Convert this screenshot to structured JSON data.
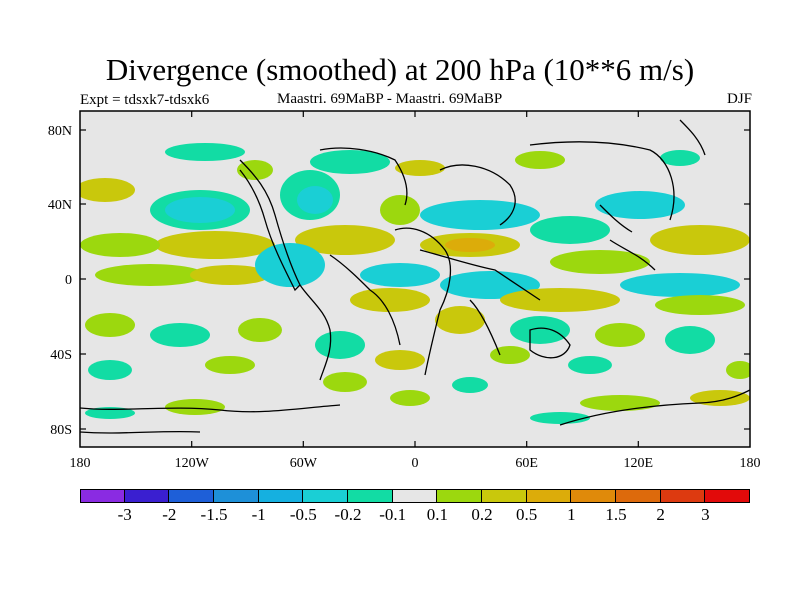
{
  "title": "Divergence (smoothed) at 200 hPa (10**6 m/s)",
  "left_subtitle": "Expt = tdsxk7-tdsxk6",
  "center_subtitle": "Maastri.  69MaBP - Maastri.  69MaBP",
  "right_subtitle": "DJF",
  "lat_labels": [
    "80N",
    "40N",
    "0",
    "40S",
    "80S"
  ],
  "lon_labels": [
    "180",
    "120W",
    "60W",
    "0",
    "60E",
    "120E",
    "180"
  ],
  "colorbar": {
    "colors": [
      "#8a2be2",
      "#3a1fd0",
      "#1e5fd8",
      "#1e90d8",
      "#15b0e0",
      "#1acfd5",
      "#12dca4",
      "#e6e6e6",
      "#9cd80e",
      "#c9c80c",
      "#dcac0a",
      "#e08a0a",
      "#dd6a0c",
      "#dd3a10",
      "#e20a0a"
    ],
    "labels": [
      "-3",
      "-2",
      "-1.5",
      "-1",
      "-0.5",
      "-0.2",
      "-0.1",
      "0.1",
      "0.2",
      "0.5",
      "1",
      "1.5",
      "2",
      "3"
    ]
  },
  "colors": {
    "background": "#e6e6e6",
    "neg_cyan": "#1acfd5",
    "neg_mint": "#12dca4",
    "neg_blue": "#15b0e0",
    "pos_green": "#9cd80e",
    "pos_olive": "#c9c80c",
    "pos_orange": "#dcac0a"
  }
}
